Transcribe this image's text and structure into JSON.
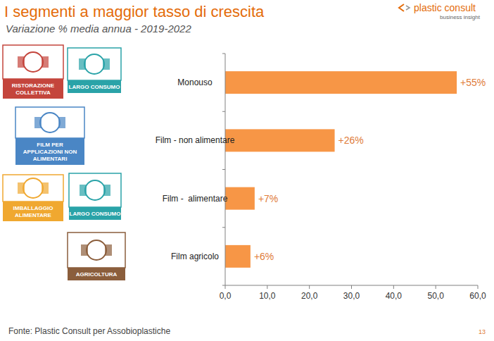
{
  "chart_data": {
    "type": "bar",
    "orientation": "horizontal",
    "title": "I segmenti a maggior tasso di crescita",
    "subtitle": "Variazione % media annua - 2019-2022",
    "categories": [
      "Monouso",
      "Film - non alimentare",
      "Film -  alimentare",
      "Film agricolo"
    ],
    "values": [
      55,
      26,
      7,
      6
    ],
    "value_labels": [
      "+55%",
      "+26%",
      "+7%",
      "+6%"
    ],
    "data_labels": true,
    "color": "#f79646",
    "xlim": [
      0,
      60
    ],
    "xticks": [
      {
        "value": 0,
        "label": "0,0"
      },
      {
        "value": 10,
        "label": "10,0"
      },
      {
        "value": 20,
        "label": "20,0"
      },
      {
        "value": 30,
        "label": "30,0"
      },
      {
        "value": 40,
        "label": "40,0"
      },
      {
        "value": 50,
        "label": "50,0"
      },
      {
        "value": 60,
        "label": "60,0"
      }
    ],
    "grid": false
  },
  "header": {
    "logo": "plastic consult",
    "logo_sub": "business insight"
  },
  "badges": [
    [
      "RISTORAZIONE COLLETTIVA",
      "LARGO CONSUMO"
    ],
    [
      "FILM PER APPLICAZIONI NON ALIMENTARI"
    ],
    [
      "IMBALLAGGIO ALIMENTARE",
      "LARGO CONSUMO"
    ],
    [
      "AGRICOLTURA"
    ]
  ],
  "footer": {
    "source": "Fonte: Plastic Consult per Assobioplastiche",
    "page": 13
  }
}
